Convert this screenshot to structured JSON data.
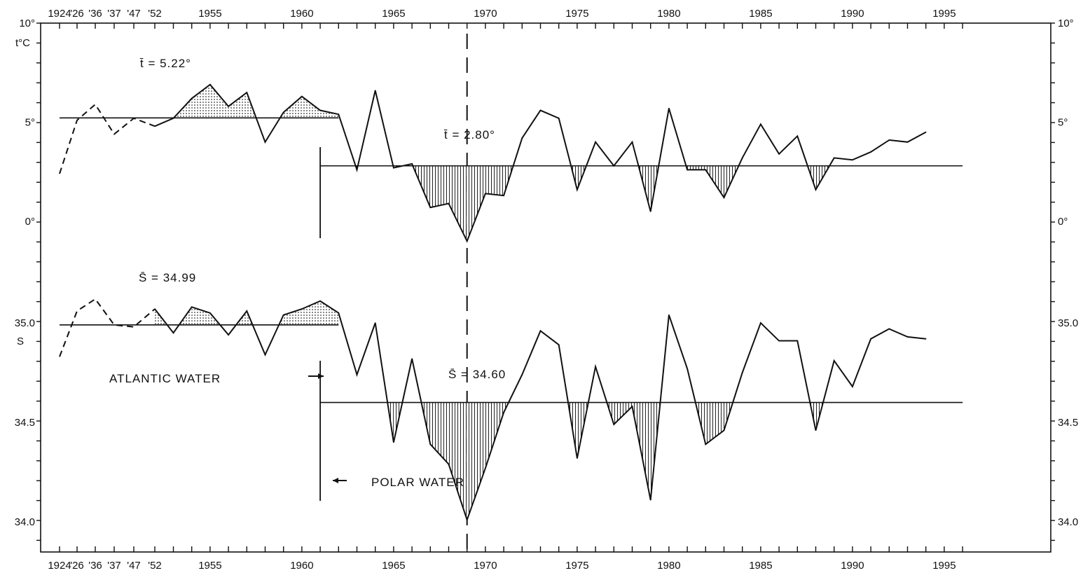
{
  "chart_data": {
    "type": "line",
    "title": "",
    "x_axis": {
      "tick_labels_top": [
        "1924",
        "'26",
        "'36",
        "'37",
        "'47",
        "'52",
        "1955",
        "1960",
        "1965",
        "1970",
        "1975",
        "1980",
        "1985",
        "1990",
        "1995"
      ],
      "tick_labels_bottom": [
        "1924",
        "'26",
        "'36",
        "'37",
        "'47",
        "'52",
        "1955",
        "1960",
        "1965",
        "1970",
        "1975",
        "1980",
        "1985",
        "1990",
        "1995"
      ],
      "sequence": [
        "1924",
        "1926",
        "1936",
        "1937",
        "1947",
        "1952",
        1953,
        1954,
        1955,
        1956,
        1957,
        1958,
        1959,
        1960,
        1961,
        1962,
        1963,
        1964,
        1965,
        1966,
        1967,
        1968,
        1969,
        1970,
        1971,
        1972,
        1973,
        1974,
        1975,
        1976,
        1977,
        1978,
        1979,
        1980,
        1981,
        1982,
        1983,
        1984,
        1985,
        1986,
        1987,
        1988,
        1989,
        1990,
        1991,
        1992,
        1993,
        1994,
        1995,
        1996
      ]
    },
    "temperature_axis": {
      "unit_label": "t°C",
      "left_tick_labels": [
        "10°",
        "5°",
        "0°"
      ],
      "right_tick_labels": [
        "10°",
        "5°",
        "0°"
      ],
      "range": [
        -5.5,
        10
      ]
    },
    "salinity_axis": {
      "unit_label": "S",
      "left_tick_labels": [
        "35.0",
        "34.5",
        "34.0"
      ],
      "right_tick_labels": [
        "35.0",
        "34.5",
        "34.0"
      ],
      "range": [
        33.78,
        35.5
      ]
    },
    "series": [
      {
        "quantity": "temperature",
        "early_dashed": {
          "x": [
            "1924",
            "1926",
            "1936",
            "1937",
            "1947",
            "1952"
          ],
          "y": [
            2.4,
            5.1,
            5.9,
            4.4,
            5.2,
            4.8
          ]
        },
        "annual": {
          "x": [
            1952,
            1953,
            1954,
            1955,
            1956,
            1957,
            1958,
            1959,
            1960,
            1961,
            1962,
            1963,
            1964,
            1965,
            1966,
            1967,
            1968,
            1969,
            1970,
            1971,
            1972,
            1973,
            1974,
            1975,
            1976,
            1977,
            1978,
            1979,
            1980,
            1981,
            1982,
            1983,
            1984,
            1985,
            1986,
            1987,
            1988,
            1989,
            1990,
            1991,
            1992,
            1993,
            1994
          ],
          "y": [
            4.8,
            5.2,
            6.2,
            6.9,
            5.8,
            6.5,
            4.0,
            5.5,
            6.3,
            5.6,
            5.4,
            2.6,
            6.6,
            2.7,
            2.9,
            0.7,
            0.9,
            -1.0,
            1.4,
            1.3,
            4.2,
            5.6,
            5.2,
            1.6,
            4.0,
            2.8,
            4.0,
            0.5,
            5.7,
            2.6,
            2.6,
            1.2,
            3.2,
            4.9,
            3.4,
            4.3,
            1.6,
            3.2,
            3.1,
            3.5,
            4.1,
            4.0,
            4.5
          ]
        },
        "periods": [
          {
            "mean_label": "t̄ = 5.22°",
            "mean": 5.22,
            "from": "1924",
            "to": 1962
          },
          {
            "mean_label": "t̄ = 2.80°",
            "mean": 2.8,
            "from": 1961,
            "to": 1996
          }
        ]
      },
      {
        "quantity": "salinity",
        "early_dashed": {
          "x": [
            "1924",
            "1926",
            "1936",
            "1937",
            "1947",
            "1952"
          ],
          "y": [
            34.83,
            35.06,
            35.12,
            34.99,
            34.98,
            35.07
          ]
        },
        "annual": {
          "x": [
            1952,
            1953,
            1954,
            1955,
            1956,
            1957,
            1958,
            1959,
            1960,
            1961,
            1962,
            1963,
            1964,
            1965,
            1966,
            1967,
            1968,
            1969,
            1970,
            1971,
            1972,
            1973,
            1974,
            1975,
            1976,
            1977,
            1978,
            1979,
            1980,
            1981,
            1982,
            1983,
            1984,
            1985,
            1986,
            1987,
            1988,
            1989,
            1990,
            1991,
            1992,
            1993,
            1994
          ],
          "y": [
            35.07,
            34.95,
            35.08,
            35.05,
            34.94,
            35.06,
            34.84,
            35.04,
            35.07,
            35.11,
            35.05,
            34.74,
            35.0,
            34.4,
            34.82,
            34.39,
            34.29,
            34.01,
            34.27,
            34.55,
            34.74,
            34.96,
            34.89,
            34.32,
            34.78,
            34.49,
            34.58,
            34.11,
            35.04,
            34.77,
            34.39,
            34.46,
            34.75,
            35.0,
            34.91,
            34.91,
            34.46,
            34.81,
            34.68,
            34.92,
            34.97,
            34.93,
            34.92
          ]
        },
        "periods": [
          {
            "mean_label": "S̄ = 34.99",
            "mean": 34.99,
            "from": "1924",
            "to": 1962
          },
          {
            "mean_label": "S̄ = 34.60",
            "mean": 34.6,
            "from": 1961,
            "to": 1996
          }
        ]
      }
    ],
    "annotations": {
      "atlantic": "ATLANTIC WATER",
      "polar": "POLAR WATER"
    },
    "vertical_dashed_marker_x": 1969,
    "grid": false,
    "legend": "none"
  }
}
